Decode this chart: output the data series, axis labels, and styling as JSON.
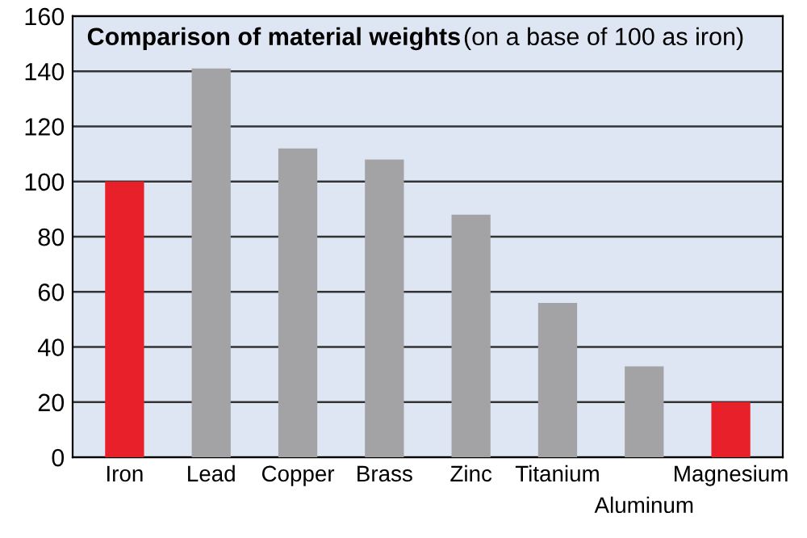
{
  "chart_data": {
    "type": "bar",
    "title": "Comparison of material weights",
    "subtitle": "(on a base of 100 as iron)",
    "categories": [
      "Iron",
      "Lead",
      "Copper",
      "Brass",
      "Zinc",
      "Titanium",
      "Aluminum",
      "Magnesium"
    ],
    "values": [
      100,
      141,
      112,
      108,
      88,
      56,
      33,
      20
    ],
    "colors": [
      "#e8202a",
      "#a3a3a6",
      "#a3a3a6",
      "#a3a3a6",
      "#a3a3a6",
      "#a3a3a6",
      "#a3a3a6",
      "#e8202a"
    ],
    "ylim": [
      0,
      160
    ],
    "yticks": [
      0,
      20,
      40,
      60,
      80,
      100,
      120,
      140,
      160
    ],
    "grid": "y"
  }
}
